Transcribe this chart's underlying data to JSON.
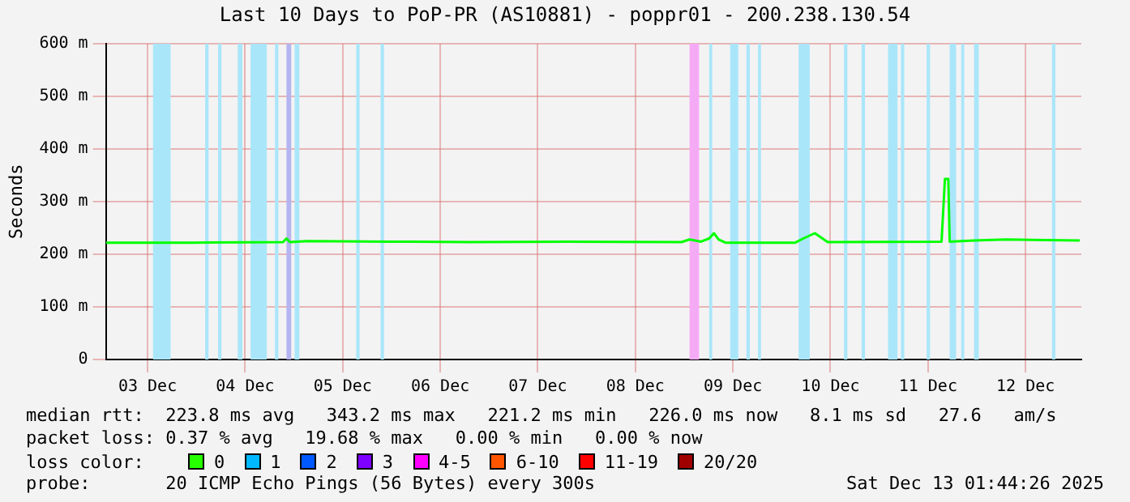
{
  "chart_data": {
    "type": "line",
    "title": "Last 10 Days to PoP-PR (AS10881) - poppr01 - 200.238.130.54",
    "ylabel": "Seconds",
    "xlim": [
      "2025-12-03T01:44",
      "2025-12-13T01:44"
    ],
    "xticks": [
      {
        "value": "2025-12-03T12:00",
        "label": "03 Dec"
      },
      {
        "value": "2025-12-04T12:00",
        "label": "04 Dec"
      },
      {
        "value": "2025-12-05T12:00",
        "label": "05 Dec"
      },
      {
        "value": "2025-12-06T12:00",
        "label": "06 Dec"
      },
      {
        "value": "2025-12-07T12:00",
        "label": "07 Dec"
      },
      {
        "value": "2025-12-08T12:00",
        "label": "08 Dec"
      },
      {
        "value": "2025-12-09T12:00",
        "label": "09 Dec"
      },
      {
        "value": "2025-12-10T12:00",
        "label": "10 Dec"
      },
      {
        "value": "2025-12-11T12:00",
        "label": "11 Dec"
      },
      {
        "value": "2025-12-12T12:00",
        "label": "12 Dec"
      }
    ],
    "ylim": [
      0,
      600
    ],
    "yticks": [
      0,
      {
        "value": 100,
        "label": "100 m"
      },
      {
        "value": 200,
        "label": "200 m"
      },
      {
        "value": 300,
        "label": "300 m"
      },
      {
        "value": 400,
        "label": "400 m"
      },
      {
        "value": 500,
        "label": "500 m"
      },
      {
        "value": 600,
        "label": "600 m"
      }
    ],
    "grid": true,
    "legend": false,
    "marker": "none",
    "line_style": "solid",
    "x": [
      "2025-12-03T01:44",
      "2025-12-03T23:20",
      "2025-12-04T21:20",
      "2025-12-04T22:10",
      "2025-12-04T23:00",
      "2025-12-05T03:20",
      "2025-12-05T23:20",
      "2025-12-06T19:20",
      "2025-12-07T19:20",
      "2025-12-08T23:20",
      "2025-12-09T01:20",
      "2025-12-09T04:10",
      "2025-12-09T06:10",
      "2025-12-09T07:20",
      "2025-12-09T08:30",
      "2025-12-09T10:10",
      "2025-12-10T03:20",
      "2025-12-10T05:20",
      "2025-12-10T08:10",
      "2025-12-10T09:40",
      "2025-12-10T11:20",
      "2025-12-11T15:20",
      "2025-12-11T16:10",
      "2025-12-11T17:00",
      "2025-12-11T17:20",
      "2025-12-11T23:20",
      "2025-12-12T07:20",
      "2025-12-13T01:20"
    ],
    "series": [
      {
        "color": "#00ff00",
        "values": [
          222,
          222,
          223,
          230,
          223,
          225,
          224,
          223,
          224,
          223,
          228,
          224,
          230,
          240,
          228,
          222,
          222,
          230,
          240,
          232,
          223,
          224,
          343,
          343,
          224,
          226,
          228,
          226
        ]
      }
    ],
    "bands": [
      {
        "axis": "x",
        "from": "2025-12-03T13:20",
        "to": "2025-12-03T17:40",
        "color": "#aae6fa"
      },
      {
        "axis": "x",
        "from": "2025-12-04T02:10",
        "to": "2025-12-04T03:00",
        "color": "#aae6fa"
      },
      {
        "axis": "x",
        "from": "2025-12-04T05:20",
        "to": "2025-12-04T06:10",
        "color": "#aae6fa"
      },
      {
        "axis": "x",
        "from": "2025-12-04T10:10",
        "to": "2025-12-04T11:20",
        "color": "#aae6fa"
      },
      {
        "axis": "x",
        "from": "2025-12-04T13:20",
        "to": "2025-12-04T17:20",
        "color": "#aae6fa"
      },
      {
        "axis": "x",
        "from": "2025-12-04T19:20",
        "to": "2025-12-04T20:10",
        "color": "#aae6fa"
      },
      {
        "axis": "x",
        "from": "2025-12-04T22:10",
        "to": "2025-12-04T23:20",
        "color": "#b4b4f0"
      },
      {
        "axis": "x",
        "from": "2025-12-05T00:10",
        "to": "2025-12-05T01:20",
        "color": "#aae6fa"
      },
      {
        "axis": "x",
        "from": "2025-12-05T15:20",
        "to": "2025-12-05T16:10",
        "color": "#aae6fa"
      },
      {
        "axis": "x",
        "from": "2025-12-05T21:20",
        "to": "2025-12-05T22:10",
        "color": "#aae6fa"
      },
      {
        "axis": "x",
        "from": "2025-12-09T01:20",
        "to": "2025-12-09T03:40",
        "color": "#f5aaf5"
      },
      {
        "axis": "x",
        "from": "2025-12-09T06:10",
        "to": "2025-12-09T06:55",
        "color": "#aae6fa"
      },
      {
        "axis": "x",
        "from": "2025-12-09T11:20",
        "to": "2025-12-09T13:20",
        "color": "#aae6fa"
      },
      {
        "axis": "x",
        "from": "2025-12-09T15:20",
        "to": "2025-12-09T16:10",
        "color": "#aae6fa"
      },
      {
        "axis": "x",
        "from": "2025-12-09T18:10",
        "to": "2025-12-09T18:55",
        "color": "#aae6fa"
      },
      {
        "axis": "x",
        "from": "2025-12-10T04:10",
        "to": "2025-12-10T06:55",
        "color": "#aae6fa"
      },
      {
        "axis": "x",
        "from": "2025-12-10T15:20",
        "to": "2025-12-10T16:10",
        "color": "#aae6fa"
      },
      {
        "axis": "x",
        "from": "2025-12-10T19:40",
        "to": "2025-12-10T20:30",
        "color": "#aae6fa"
      },
      {
        "axis": "x",
        "from": "2025-12-11T02:10",
        "to": "2025-12-11T04:30",
        "color": "#aae6fa"
      },
      {
        "axis": "x",
        "from": "2025-12-11T05:20",
        "to": "2025-12-11T06:10",
        "color": "#aae6fa"
      },
      {
        "axis": "x",
        "from": "2025-12-11T11:40",
        "to": "2025-12-11T12:30",
        "color": "#aae6fa"
      },
      {
        "axis": "x",
        "from": "2025-12-11T17:20",
        "to": "2025-12-11T18:55",
        "color": "#aae6fa"
      },
      {
        "axis": "x",
        "from": "2025-12-11T20:10",
        "to": "2025-12-11T20:55",
        "color": "#aae6fa"
      },
      {
        "axis": "x",
        "from": "2025-12-11T23:20",
        "to": "2025-12-12T00:30",
        "color": "#aae6fa"
      },
      {
        "axis": "x",
        "from": "2025-12-12T18:30",
        "to": "2025-12-12T19:20",
        "color": "#aae6fa"
      }
    ],
    "annotations": [
      "median rtt:  223.8 ms avg   343.2 ms max   221.2 ms min   226.0 ms now   8.1 ms sd   27.6   am/s",
      "packet loss: 0.37 % avg   19.68 % max   0.00 % min   0.00 % now",
      "loss color:",
      "0",
      "1",
      "2",
      "3",
      "4-5",
      "6-10",
      "11-19",
      "20/20",
      "probe:       20 ICMP Echo Pings (56 Bytes) every 300s",
      "Sat Dec 13 01:44:26 2025"
    ]
  }
}
